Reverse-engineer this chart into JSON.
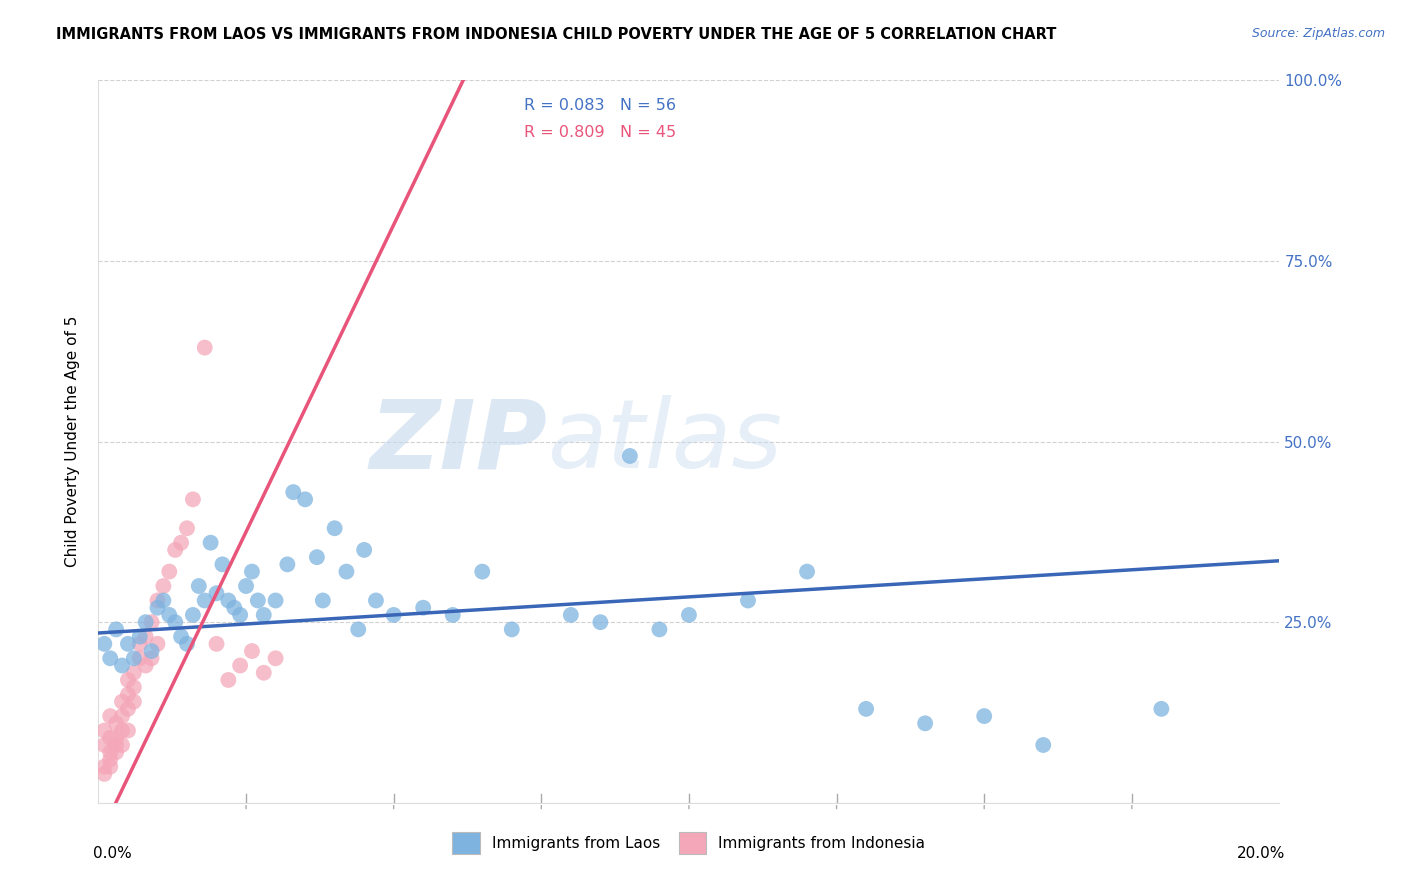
{
  "title": "IMMIGRANTS FROM LAOS VS IMMIGRANTS FROM INDONESIA CHILD POVERTY UNDER THE AGE OF 5 CORRELATION CHART",
  "source": "Source: ZipAtlas.com",
  "ylabel": "Child Poverty Under the Age of 5",
  "watermark_zip": "ZIP",
  "watermark_atlas": "atlas",
  "laos_color": "#7EB3E0",
  "indonesia_color": "#F4A7B9",
  "laos_line_color": "#3A66B8",
  "indonesia_line_color": "#E8547A",
  "laos_r": 0.083,
  "laos_n": 56,
  "indonesia_r": 0.809,
  "indonesia_n": 45,
  "laos_scatter_x": [
    0.001,
    0.002,
    0.003,
    0.004,
    0.005,
    0.006,
    0.007,
    0.008,
    0.009,
    0.01,
    0.011,
    0.012,
    0.013,
    0.014,
    0.015,
    0.016,
    0.017,
    0.018,
    0.019,
    0.02,
    0.021,
    0.022,
    0.023,
    0.024,
    0.025,
    0.026,
    0.027,
    0.028,
    0.03,
    0.032,
    0.033,
    0.035,
    0.037,
    0.038,
    0.04,
    0.042,
    0.044,
    0.045,
    0.047,
    0.05,
    0.055,
    0.06,
    0.065,
    0.07,
    0.08,
    0.085,
    0.09,
    0.095,
    0.1,
    0.11,
    0.12,
    0.13,
    0.14,
    0.15,
    0.16,
    0.18
  ],
  "laos_scatter_y": [
    0.22,
    0.2,
    0.24,
    0.19,
    0.22,
    0.2,
    0.23,
    0.25,
    0.21,
    0.27,
    0.28,
    0.26,
    0.25,
    0.23,
    0.22,
    0.26,
    0.3,
    0.28,
    0.36,
    0.29,
    0.33,
    0.28,
    0.27,
    0.26,
    0.3,
    0.32,
    0.28,
    0.26,
    0.28,
    0.33,
    0.43,
    0.42,
    0.34,
    0.28,
    0.38,
    0.32,
    0.24,
    0.35,
    0.28,
    0.26,
    0.27,
    0.26,
    0.32,
    0.24,
    0.26,
    0.25,
    0.48,
    0.24,
    0.26,
    0.28,
    0.32,
    0.13,
    0.11,
    0.12,
    0.08,
    0.13
  ],
  "indonesia_scatter_x": [
    0.001,
    0.001,
    0.001,
    0.001,
    0.002,
    0.002,
    0.002,
    0.002,
    0.002,
    0.003,
    0.003,
    0.003,
    0.003,
    0.004,
    0.004,
    0.004,
    0.004,
    0.005,
    0.005,
    0.005,
    0.005,
    0.006,
    0.006,
    0.006,
    0.007,
    0.007,
    0.008,
    0.008,
    0.009,
    0.009,
    0.01,
    0.01,
    0.011,
    0.012,
    0.013,
    0.014,
    0.015,
    0.016,
    0.018,
    0.02,
    0.022,
    0.024,
    0.026,
    0.028,
    0.03
  ],
  "indonesia_scatter_y": [
    0.05,
    0.08,
    0.1,
    0.04,
    0.06,
    0.09,
    0.07,
    0.12,
    0.05,
    0.08,
    0.11,
    0.07,
    0.09,
    0.14,
    0.1,
    0.08,
    0.12,
    0.13,
    0.15,
    0.1,
    0.17,
    0.16,
    0.18,
    0.14,
    0.2,
    0.22,
    0.19,
    0.23,
    0.25,
    0.2,
    0.28,
    0.22,
    0.3,
    0.32,
    0.35,
    0.36,
    0.38,
    0.42,
    0.63,
    0.22,
    0.17,
    0.19,
    0.21,
    0.18,
    0.2
  ],
  "xlim": [
    0.0,
    0.2
  ],
  "ylim": [
    0.0,
    1.0
  ],
  "xtick_positions": [
    0.0,
    0.025,
    0.05,
    0.075,
    0.1,
    0.125,
    0.15,
    0.175,
    0.2
  ],
  "ytick_positions": [
    0.0,
    0.25,
    0.5,
    0.75,
    1.0
  ],
  "right_yticklabels": [
    "",
    "25.0%",
    "50.0%",
    "75.0%",
    "100.0%"
  ]
}
